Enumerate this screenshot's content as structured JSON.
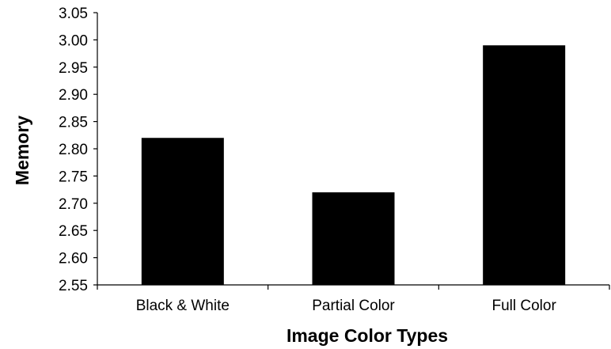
{
  "chart_data": {
    "type": "bar",
    "categories": [
      "Black & White",
      "Partial Color",
      "Full Color"
    ],
    "values": [
      2.82,
      2.72,
      2.99
    ],
    "title": "",
    "xlabel": "Image Color Types",
    "ylabel": "Memory",
    "ylim": [
      2.55,
      3.05
    ],
    "yticks": [
      "2.55",
      "2.60",
      "2.65",
      "2.70",
      "2.75",
      "2.80",
      "2.85",
      "2.90",
      "2.95",
      "3.00",
      "3.05"
    ],
    "grid": false,
    "legend": "none",
    "colors": {
      "bar": "#000000",
      "axis": "#000000",
      "background": "#ffffff"
    }
  }
}
